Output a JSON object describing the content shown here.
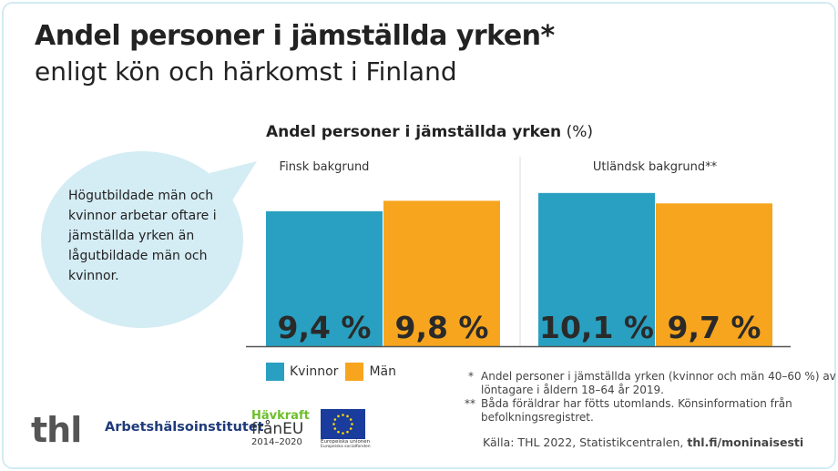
{
  "header": {
    "title": "Andel personer i jämställda yrken*",
    "subtitle": "enligt kön och härkomst i Finland"
  },
  "bubble": {
    "text": "Högutbildade män och kvinnor arbetar oftare i jämställda yrken än lågutbildade män och kvinnor."
  },
  "chart_data": {
    "type": "bar",
    "title_bold": "Andel personer i jämställda yrken",
    "title_unit": "(%)",
    "groups": [
      "Finsk bakgrund",
      "Utländsk bakgrund**"
    ],
    "series": [
      {
        "name": "Kvinnor",
        "color": "#29a0c1",
        "values": [
          9.4,
          10.1
        ],
        "labels": [
          "9,4 %",
          "10,1 %"
        ]
      },
      {
        "name": "Män",
        "color": "#f7a51e",
        "values": [
          9.8,
          9.7
        ],
        "labels": [
          "9,8 %",
          "9,7 %"
        ]
      }
    ],
    "legend": "bottom-left",
    "grid": false
  },
  "notes": [
    {
      "mark": "*",
      "text": "Andel personer i jämställda yrken (kvinnor och män 40–60 %) av löntagare i åldern 18–64 år 2019."
    },
    {
      "mark": "**",
      "text": "Båda föräldrar har fötts utomlands. Könsinformation från befolkningsregistret."
    }
  ],
  "source": {
    "text": "Källa: THL 2022, Statistikcentralen, ",
    "link": "thl.fi/moninaisesti"
  },
  "logos": {
    "thl": "thl",
    "ahi": "Arbetshälsoinstitutet",
    "havkraft_1": "Hävkraft",
    "havkraft_2": "frånEU",
    "havkraft_3": "2014–2020",
    "eu_1": "Europeiska unionen",
    "eu_2": "Europeiska socialfonden"
  }
}
